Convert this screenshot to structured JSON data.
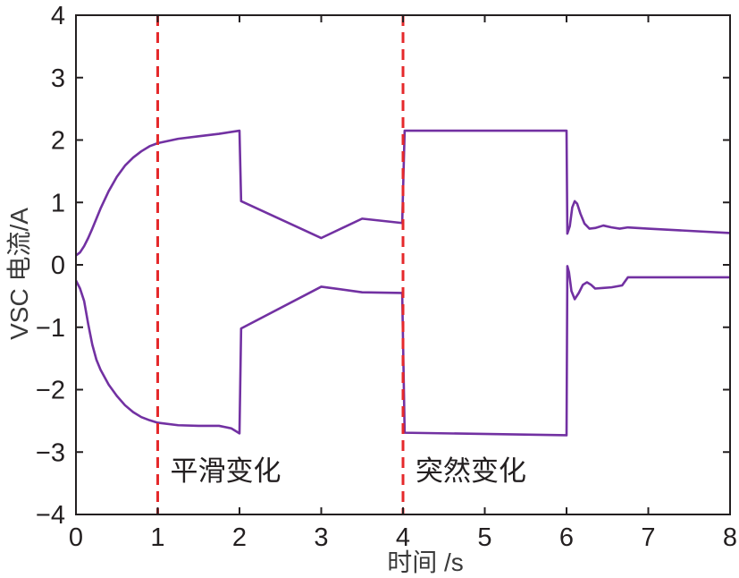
{
  "chart_data": {
    "type": "line",
    "xlabel": "时间 /s",
    "ylabel": "VSC 电流/A",
    "xlim": [
      0,
      8
    ],
    "ylim": [
      -4,
      4
    ],
    "x_ticks": [
      0,
      1,
      2,
      3,
      4,
      5,
      6,
      7,
      8
    ],
    "x_tick_labels": [
      "0",
      "1",
      "2",
      "3",
      "4",
      "5",
      "6",
      "7",
      "8"
    ],
    "y_ticks": [
      4,
      3,
      2,
      1,
      0,
      -1,
      -2,
      -3,
      -4
    ],
    "y_tick_labels": [
      "4",
      "3",
      "2",
      "1",
      "0",
      "−1",
      "−2",
      "−3",
      "−4"
    ],
    "grid": false,
    "series": [
      {
        "x": [
          0,
          0.05,
          0.1,
          0.15,
          0.2,
          0.3,
          0.4,
          0.5,
          0.6,
          0.7,
          0.8,
          0.9,
          1.0,
          1.25,
          1.5,
          1.75,
          2.0,
          2.02,
          3.0,
          3.5,
          3.99,
          4.02,
          6.0,
          6.01,
          6.04,
          6.07,
          6.1,
          6.13,
          6.17,
          6.22,
          6.28,
          6.35,
          6.45,
          6.55,
          6.65,
          6.75,
          7.0,
          8.0
        ],
        "y": [
          0.15,
          0.2,
          0.3,
          0.43,
          0.58,
          0.9,
          1.18,
          1.41,
          1.59,
          1.72,
          1.82,
          1.9,
          1.95,
          2.02,
          2.06,
          2.1,
          2.15,
          1.02,
          0.43,
          0.74,
          0.67,
          2.15,
          2.15,
          0.5,
          0.62,
          0.92,
          1.02,
          0.98,
          0.82,
          0.66,
          0.58,
          0.59,
          0.63,
          0.6,
          0.58,
          0.6,
          0.58,
          0.51
        ]
      },
      {
        "x": [
          0,
          0.05,
          0.1,
          0.15,
          0.2,
          0.25,
          0.3,
          0.4,
          0.5,
          0.6,
          0.7,
          0.8,
          0.9,
          1.0,
          1.25,
          1.5,
          1.75,
          1.9,
          2.0,
          2.02,
          3.0,
          3.5,
          3.99,
          4.02,
          6.0,
          6.01,
          6.03,
          6.06,
          6.1,
          6.15,
          6.2,
          6.25,
          6.3,
          6.35,
          6.45,
          6.55,
          6.68,
          6.75,
          8.0
        ],
        "y": [
          -0.25,
          -0.38,
          -0.58,
          -0.95,
          -1.28,
          -1.52,
          -1.68,
          -1.92,
          -2.1,
          -2.25,
          -2.36,
          -2.44,
          -2.49,
          -2.53,
          -2.57,
          -2.58,
          -2.58,
          -2.62,
          -2.7,
          -1.02,
          -0.35,
          -0.44,
          -0.45,
          -2.69,
          -2.73,
          -0.02,
          -0.12,
          -0.42,
          -0.55,
          -0.45,
          -0.32,
          -0.28,
          -0.32,
          -0.38,
          -0.37,
          -0.36,
          -0.33,
          -0.2,
          -0.2
        ]
      }
    ],
    "vertical_markers": [
      {
        "x": 1,
        "style": "dashed",
        "label": "平滑变化"
      },
      {
        "x": 4,
        "style": "dashed",
        "label": "突然变化"
      }
    ]
  },
  "colors": {
    "series": "#7231a2",
    "marker_line": "#e5292b",
    "axes": "#231f20",
    "background": "#ffffff"
  }
}
